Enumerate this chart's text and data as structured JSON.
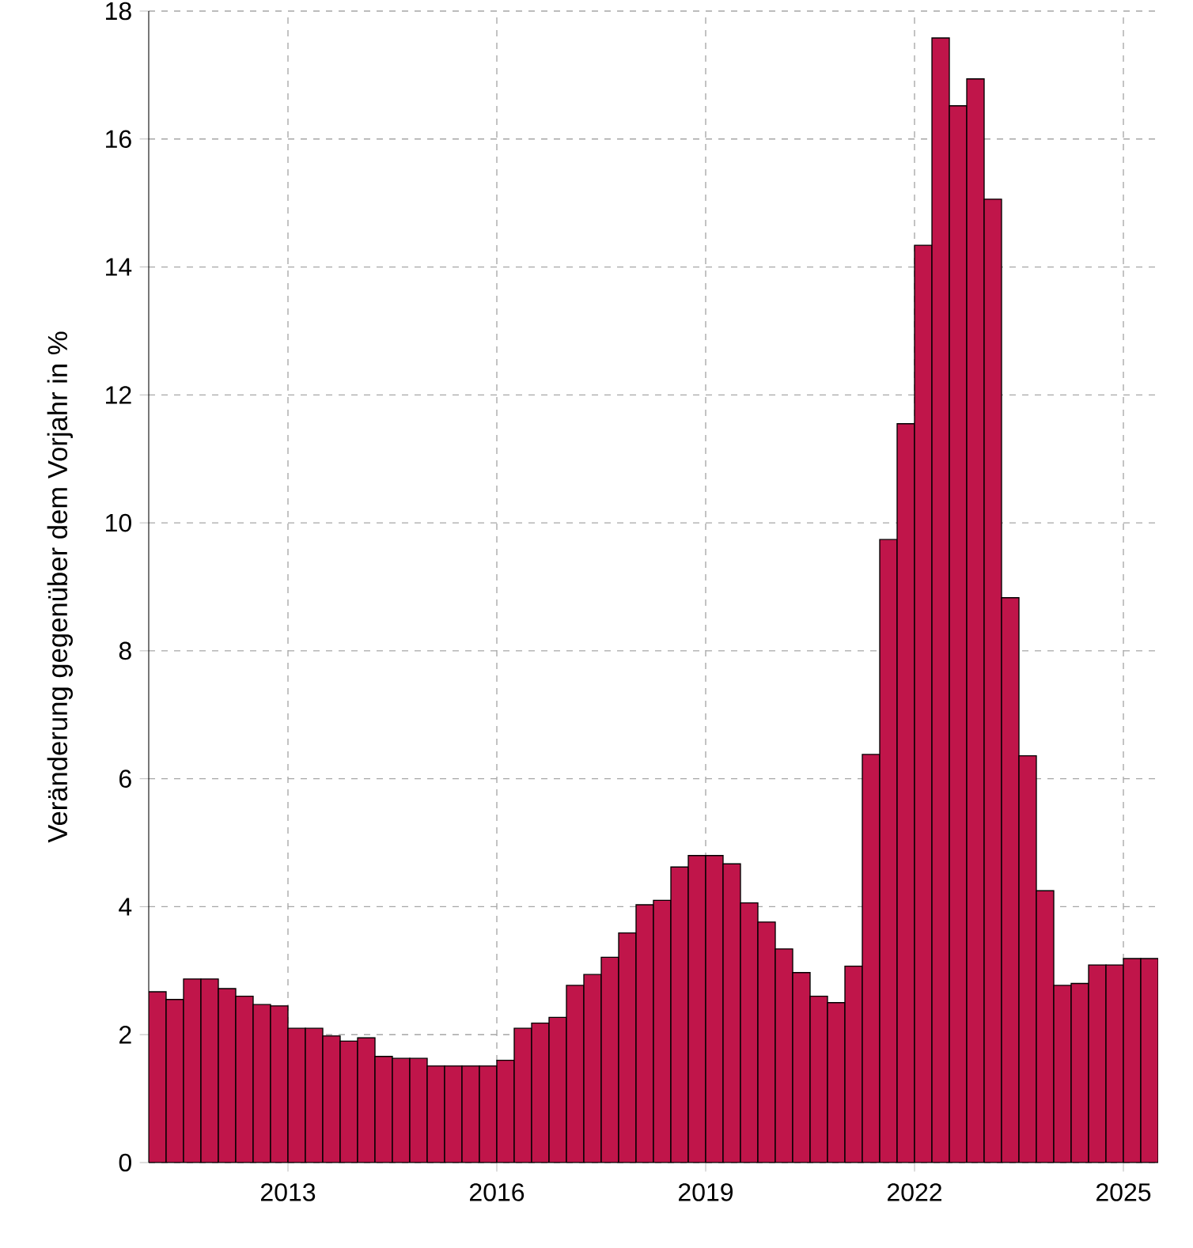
{
  "chart_data": {
    "type": "bar",
    "ylabel": "Veränderung gegenüber dem Vorjahr in %",
    "x": [
      2011.125,
      2011.375,
      2011.625,
      2011.875,
      2012.125,
      2012.375,
      2012.625,
      2012.875,
      2013.125,
      2013.375,
      2013.625,
      2013.875,
      2014.125,
      2014.375,
      2014.625,
      2014.875,
      2015.125,
      2015.375,
      2015.625,
      2015.875,
      2016.125,
      2016.375,
      2016.625,
      2016.875,
      2017.125,
      2017.375,
      2017.625,
      2017.875,
      2018.125,
      2018.375,
      2018.625,
      2018.875,
      2019.125,
      2019.375,
      2019.625,
      2019.875,
      2020.125,
      2020.375,
      2020.625,
      2020.875,
      2021.125,
      2021.375,
      2021.625,
      2021.875,
      2022.125,
      2022.375,
      2022.625,
      2022.875,
      2023.125,
      2023.375,
      2023.625,
      2023.875,
      2024.125,
      2024.375,
      2024.625,
      2024.875,
      2025.125,
      2025.375
    ],
    "values": [
      2.67,
      2.55,
      2.87,
      2.87,
      2.72,
      2.6,
      2.47,
      2.45,
      2.1,
      2.1,
      1.98,
      1.9,
      1.95,
      1.66,
      1.63,
      1.63,
      1.51,
      1.51,
      1.51,
      1.51,
      1.6,
      2.1,
      2.18,
      2.27,
      2.77,
      2.94,
      3.21,
      3.59,
      4.03,
      4.1,
      4.62,
      4.8,
      4.8,
      4.67,
      4.06,
      3.76,
      3.34,
      2.97,
      2.6,
      2.5,
      3.07,
      6.38,
      9.74,
      11.55,
      14.34,
      17.58,
      16.52,
      16.94,
      15.06,
      8.83,
      6.36,
      4.25,
      2.77,
      2.8,
      3.09,
      3.09,
      3.19,
      3.19
    ],
    "color": "#c0154a",
    "xlim": [
      2011,
      2025.5
    ],
    "xticks": [
      2013,
      2016,
      2019,
      2022,
      2025
    ],
    "ylim": [
      0,
      18
    ],
    "yticks": [
      0,
      2,
      4,
      6,
      8,
      10,
      12,
      14,
      16,
      18
    ],
    "grid": true
  }
}
